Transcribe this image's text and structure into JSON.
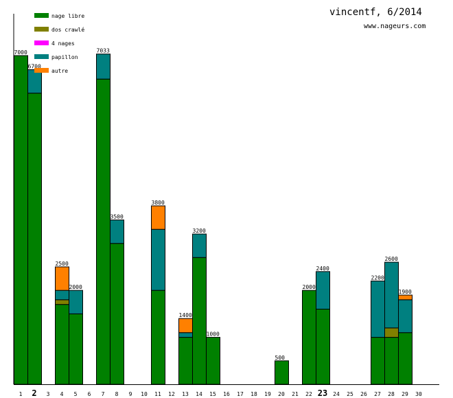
{
  "chart_data": {
    "type": "bar",
    "stacked": true,
    "title": "vincentf, 6/2014",
    "subtitle": "www.nageurs.com",
    "xlabel": "",
    "ylabel": "",
    "ylim": [
      0,
      7900
    ],
    "categories": [
      "1",
      "2",
      "3",
      "4",
      "5",
      "6",
      "7",
      "8",
      "9",
      "10",
      "11",
      "12",
      "13",
      "14",
      "15",
      "16",
      "17",
      "18",
      "19",
      "20",
      "21",
      "22",
      "23",
      "24",
      "25",
      "26",
      "27",
      "28",
      "29",
      "30"
    ],
    "highlighted_categories": [
      "2",
      "23"
    ],
    "legend_position": "top-left",
    "series": [
      {
        "name": "nage libre",
        "color": "#008000",
        "values": [
          7000,
          6200,
          0,
          1700,
          1500,
          0,
          6500,
          3000,
          0,
          0,
          2000,
          0,
          1000,
          2700,
          1000,
          0,
          0,
          0,
          0,
          500,
          0,
          2000,
          1600,
          0,
          0,
          0,
          1000,
          1000,
          1100,
          0
        ]
      },
      {
        "name": "dos crawlé",
        "color": "#808000",
        "values": [
          0,
          0,
          0,
          100,
          0,
          0,
          0,
          0,
          0,
          0,
          0,
          0,
          0,
          0,
          0,
          0,
          0,
          0,
          0,
          0,
          0,
          0,
          0,
          0,
          0,
          0,
          0,
          200,
          0,
          0
        ]
      },
      {
        "name": "4 nages",
        "color": "#ff00ff",
        "values": [
          0,
          0,
          0,
          0,
          0,
          0,
          0,
          0,
          0,
          0,
          0,
          0,
          0,
          0,
          0,
          0,
          0,
          0,
          0,
          0,
          0,
          0,
          0,
          0,
          0,
          0,
          0,
          0,
          0,
          0
        ]
      },
      {
        "name": "papillon",
        "color": "#008080",
        "values": [
          0,
          500,
          0,
          200,
          500,
          0,
          533,
          500,
          0,
          0,
          1300,
          0,
          100,
          500,
          0,
          0,
          0,
          0,
          0,
          0,
          0,
          0,
          800,
          0,
          0,
          0,
          1200,
          1400,
          700,
          0
        ]
      },
      {
        "name": "autre",
        "color": "#ff8000",
        "values": [
          0,
          0,
          0,
          500,
          0,
          0,
          0,
          0,
          0,
          0,
          500,
          0,
          300,
          0,
          0,
          0,
          0,
          0,
          0,
          0,
          0,
          0,
          0,
          0,
          0,
          0,
          0,
          0,
          100,
          0
        ]
      }
    ],
    "totals": [
      "7000",
      "6700",
      "",
      "2500",
      "2000",
      "",
      "7033",
      "3500",
      "",
      "",
      "3800",
      "",
      "1400",
      "3200",
      "1000",
      "",
      "",
      "",
      "",
      "500",
      "",
      "2000",
      "2400",
      "",
      "",
      "",
      "2200",
      "2600",
      "1900",
      ""
    ]
  }
}
